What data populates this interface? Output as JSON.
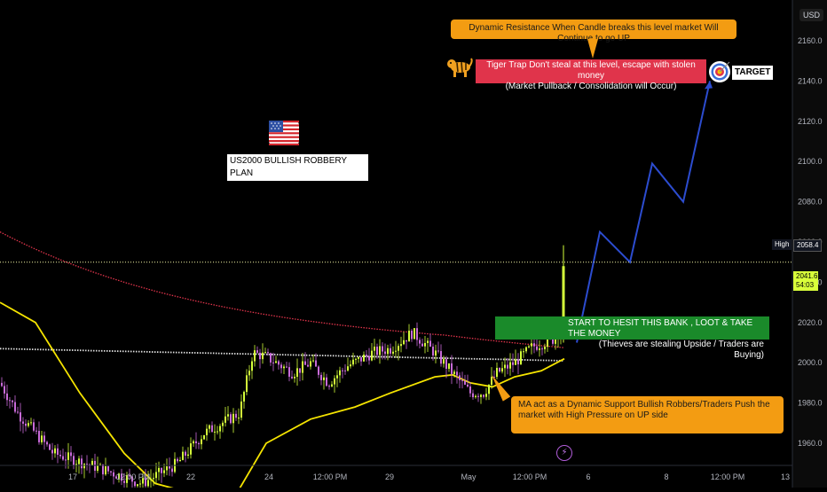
{
  "chart_data": {
    "type": "candlestick",
    "currency": "USD",
    "ylim": [
      1945,
      2175
    ],
    "y_ticks": [
      1960,
      1980,
      2000,
      2020,
      2040,
      2060,
      2080,
      2100,
      2120,
      2140,
      2160
    ],
    "x_ticks": [
      "17",
      "12:00 PM",
      "22",
      "24",
      "12:00 PM",
      "29",
      "May",
      "12:00 PM",
      "6",
      "8",
      "12:00 PM",
      "13"
    ],
    "price_labels": {
      "high_label": "High",
      "high_value": "2058.4",
      "last_value": "2041.6",
      "countdown": "54:03"
    },
    "projection_path": [
      [
        2022,
        2010
      ],
      [
        2048,
        2065
      ],
      [
        2075,
        2050
      ],
      [
        2099,
        2099
      ],
      [
        2128,
        2080
      ],
      [
        2165,
        2140
      ]
    ],
    "colors": {
      "bull_candle": "#d4ff3a",
      "bear_candle": "#c86bd8",
      "ma_red": "#e0344b",
      "ma_white": "#e0e0e0",
      "ma_yellow": "#f5e400",
      "projection": "#2c4ccf",
      "high_line": "#f5f7a8"
    }
  },
  "annotations": {
    "top_note": "Dynamic Resistance When Candle breaks this level market Will Continue to go UP",
    "tiger_note_line1": "Tiger Trap Don't steal at this level, escape with stolen money",
    "tiger_note_line2": "(Market Pullback / Consolidation will Occur)",
    "target_label": "TARGET",
    "plan_title": "US2000 BULLISH ROBBERY PLAN",
    "entry_line1": "START TO HESIT THIS BANK , LOOT & TAKE THE MONEY",
    "entry_line2": "(Thieves are stealing Upside / Traders are Buying)",
    "ma_note": "MA act as a Dynamic Support Bullish Robbers/Traders Push the market with High Pressure on UP side"
  },
  "icons": {
    "flag": "usa-flag-icon",
    "tiger": "tiger-icon",
    "target": "target-icon",
    "lightning": "lightning-icon"
  }
}
